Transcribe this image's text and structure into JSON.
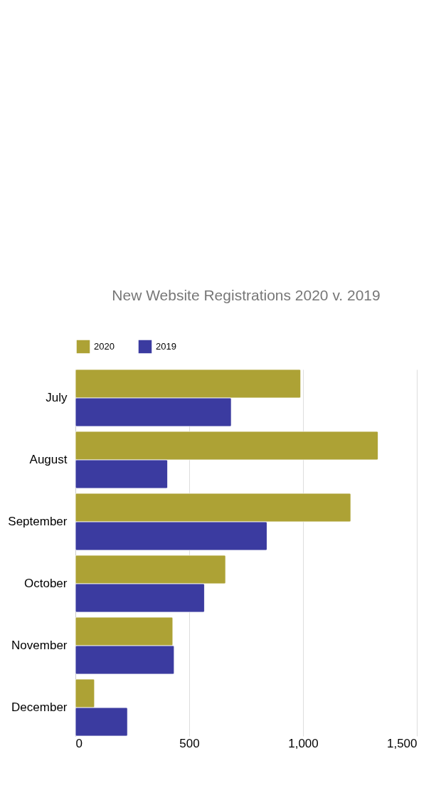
{
  "chart_data": {
    "type": "bar",
    "orientation": "horizontal",
    "title": "New Website Registrations 2020 v. 2019",
    "categories": [
      "July",
      "August",
      "September",
      "October",
      "November",
      "December"
    ],
    "series": [
      {
        "name": "2020",
        "color": "#ada235",
        "values": [
          990,
          1330,
          1210,
          660,
          428,
          84
        ]
      },
      {
        "name": "2019",
        "color": "#3b3ba0",
        "values": [
          685,
          405,
          842,
          567,
          434,
          229
        ]
      }
    ],
    "xlim": [
      0,
      1500
    ],
    "xticks": [
      0,
      {
        "value": 500,
        "label": "500"
      },
      {
        "value": 1000,
        "label": "1,000"
      },
      {
        "value": 1500,
        "label": "1,500"
      }
    ],
    "grid": "x",
    "legend": "top"
  }
}
